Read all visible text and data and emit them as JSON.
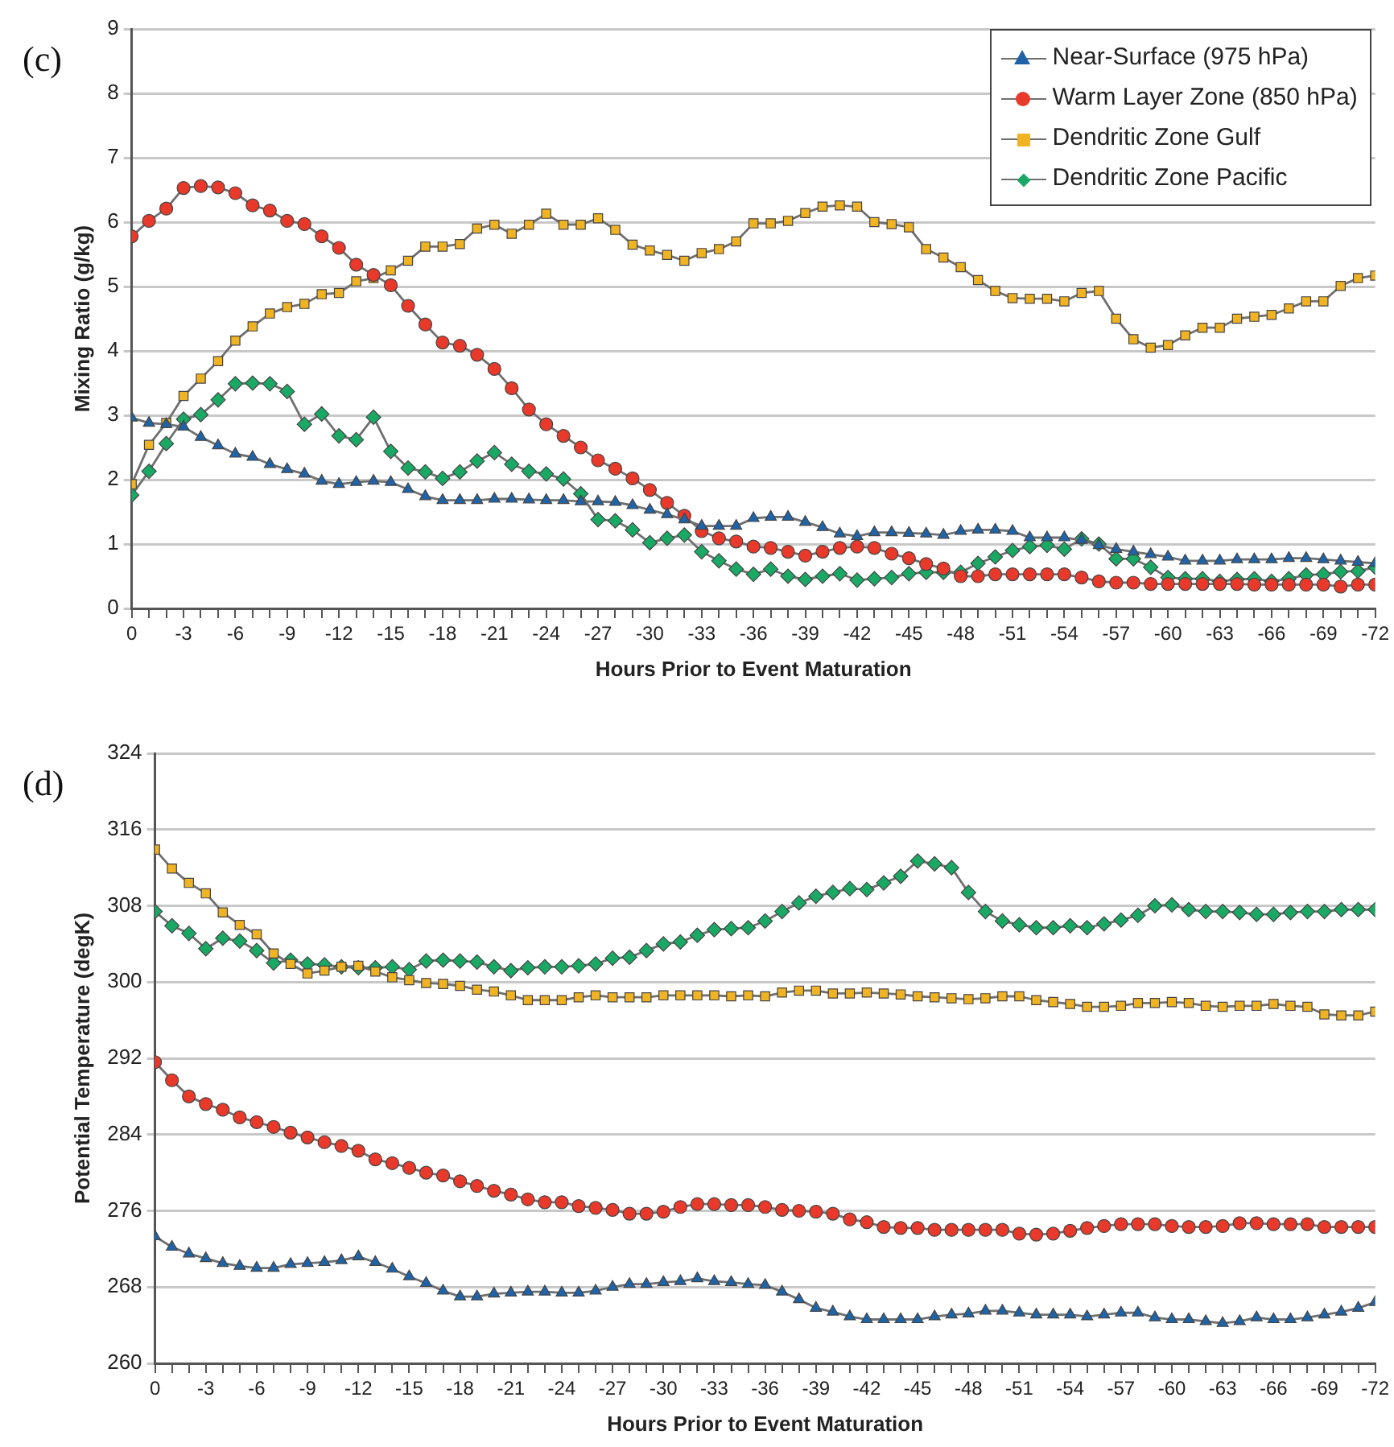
{
  "chart_data": [
    {
      "type": "line",
      "title": "(c)",
      "xlabel": "Hours Prior to Event Maturation",
      "ylabel": "Mixing Ratio (g/kg)",
      "x": [
        0,
        -1,
        -2,
        -3,
        -4,
        -5,
        -6,
        -7,
        -8,
        -9,
        -10,
        -11,
        -12,
        -13,
        -14,
        -15,
        -16,
        -17,
        -18,
        -19,
        -20,
        -21,
        -22,
        -23,
        -24,
        -25,
        -26,
        -27,
        -28,
        -29,
        -30,
        -31,
        -32,
        -33,
        -34,
        -35,
        -36,
        -37,
        -38,
        -39,
        -40,
        -41,
        -42,
        -43,
        -44,
        -45,
        -46,
        -47,
        -48,
        -49,
        -50,
        -51,
        -52,
        -53,
        -54,
        -55,
        -56,
        -57,
        -58,
        -59,
        -60,
        -61,
        -62,
        -63,
        -64,
        -65,
        -66,
        -67,
        -68,
        -69,
        -70,
        -71,
        -72
      ],
      "xlim": [
        0,
        -72
      ],
      "xticks": [
        0,
        {
          "value": -1,
          "label": null
        },
        {
          "value": -2,
          "label": null
        },
        -3,
        {
          "value": -4,
          "label": null
        },
        {
          "value": -5,
          "label": null
        },
        -6,
        {
          "value": -7,
          "label": null
        },
        {
          "value": -8,
          "label": null
        },
        -9,
        {
          "value": -10,
          "label": null
        },
        {
          "value": -11,
          "label": null
        },
        -12,
        {
          "value": -13,
          "label": null
        },
        {
          "value": -14,
          "label": null
        },
        -15,
        {
          "value": -16,
          "label": null
        },
        {
          "value": -17,
          "label": null
        },
        -18,
        {
          "value": -19,
          "label": null
        },
        {
          "value": -20,
          "label": null
        },
        -21,
        {
          "value": -22,
          "label": null
        },
        {
          "value": -23,
          "label": null
        },
        -24,
        {
          "value": -25,
          "label": null
        },
        {
          "value": -26,
          "label": null
        },
        -27,
        {
          "value": -28,
          "label": null
        },
        {
          "value": -29,
          "label": null
        },
        -30,
        {
          "value": -31,
          "label": null
        },
        {
          "value": -32,
          "label": null
        },
        -33,
        {
          "value": -34,
          "label": null
        },
        {
          "value": -35,
          "label": null
        },
        -36,
        {
          "value": -37,
          "label": null
        },
        {
          "value": -38,
          "label": null
        },
        -39,
        {
          "value": -40,
          "label": null
        },
        {
          "value": -41,
          "label": null
        },
        -42,
        {
          "value": -43,
          "label": null
        },
        {
          "value": -44,
          "label": null
        },
        -45,
        {
          "value": -46,
          "label": null
        },
        {
          "value": -47,
          "label": null
        },
        -48,
        {
          "value": -49,
          "label": null
        },
        {
          "value": -50,
          "label": null
        },
        -51,
        {
          "value": -52,
          "label": null
        },
        {
          "value": -53,
          "label": null
        },
        -54,
        {
          "value": -55,
          "label": null
        },
        {
          "value": -56,
          "label": null
        },
        -57,
        {
          "value": -58,
          "label": null
        },
        {
          "value": -59,
          "label": null
        },
        -60,
        {
          "value": -61,
          "label": null
        },
        {
          "value": -62,
          "label": null
        },
        -63,
        {
          "value": -64,
          "label": null
        },
        {
          "value": -65,
          "label": null
        },
        -66,
        {
          "value": -67,
          "label": null
        },
        {
          "value": -68,
          "label": null
        },
        -69,
        {
          "value": -70,
          "label": null
        },
        {
          "value": -71,
          "label": null
        },
        -72
      ],
      "ylim": [
        0,
        9
      ],
      "yticks": [
        0,
        1,
        2,
        3,
        4,
        5,
        6,
        7,
        8,
        9
      ],
      "grid": "y",
      "legend": "top right",
      "line_style": "solid",
      "series": [
        {
          "name": "Near-Surface (975 hPa)",
          "color": "#1f64a8",
          "marker": "triangle",
          "values": [
            2.96,
            2.88,
            2.86,
            2.82,
            2.66,
            2.53,
            2.4,
            2.35,
            2.24,
            2.16,
            2.09,
            1.98,
            1.93,
            1.96,
            1.98,
            1.96,
            1.85,
            1.74,
            1.68,
            1.68,
            1.68,
            1.7,
            1.7,
            1.69,
            1.68,
            1.68,
            1.66,
            1.66,
            1.65,
            1.6,
            1.53,
            1.46,
            1.38,
            1.28,
            1.28,
            1.28,
            1.4,
            1.42,
            1.42,
            1.34,
            1.26,
            1.16,
            1.12,
            1.18,
            1.18,
            1.17,
            1.16,
            1.14,
            1.2,
            1.22,
            1.22,
            1.2,
            1.1,
            1.1,
            1.1,
            1.06,
            0.98,
            0.92,
            0.88,
            0.84,
            0.8,
            0.74,
            0.74,
            0.74,
            0.76,
            0.76,
            0.76,
            0.78,
            0.78,
            0.76,
            0.74,
            0.72,
            0.7
          ]
        },
        {
          "name": "Warm Layer Zone (850 hPa)",
          "color": "#e8392a",
          "marker": "circle",
          "values": [
            5.78,
            6.02,
            6.21,
            6.53,
            6.56,
            6.54,
            6.45,
            6.26,
            6.18,
            6.02,
            5.97,
            5.78,
            5.6,
            5.34,
            5.18,
            5.02,
            4.7,
            4.41,
            4.13,
            4.08,
            3.94,
            3.72,
            3.42,
            3.09,
            2.86,
            2.68,
            2.5,
            2.3,
            2.17,
            2.02,
            1.84,
            1.64,
            1.44,
            1.2,
            1.09,
            1.04,
            0.96,
            0.94,
            0.88,
            0.82,
            0.88,
            0.94,
            0.96,
            0.94,
            0.85,
            0.78,
            0.69,
            0.62,
            0.5,
            0.5,
            0.53,
            0.53,
            0.53,
            0.53,
            0.53,
            0.48,
            0.42,
            0.4,
            0.4,
            0.38,
            0.38,
            0.38,
            0.38,
            0.38,
            0.38,
            0.37,
            0.37,
            0.37,
            0.37,
            0.37,
            0.34,
            0.37,
            0.37
          ]
        },
        {
          "name": "Dendritic Zone Gulf",
          "color": "#f0b323",
          "marker": "square",
          "values": [
            1.93,
            2.54,
            2.88,
            3.3,
            3.57,
            3.84,
            4.16,
            4.38,
            4.58,
            4.68,
            4.73,
            4.88,
            4.9,
            5.08,
            5.13,
            5.25,
            5.4,
            5.62,
            5.62,
            5.66,
            5.9,
            5.96,
            5.82,
            5.96,
            6.13,
            5.96,
            5.96,
            6.06,
            5.88,
            5.65,
            5.56,
            5.49,
            5.4,
            5.52,
            5.58,
            5.7,
            5.98,
            5.98,
            6.02,
            6.14,
            6.24,
            6.26,
            6.24,
            6.0,
            5.97,
            5.92,
            5.58,
            5.45,
            5.3,
            5.1,
            4.93,
            4.82,
            4.81,
            4.81,
            4.77,
            4.9,
            4.93,
            4.5,
            4.18,
            4.05,
            4.09,
            4.24,
            4.36,
            4.36,
            4.5,
            4.53,
            4.56,
            4.66,
            4.77,
            4.77,
            5.01,
            5.13,
            5.17
          ]
        },
        {
          "name": "Dendritic Zone Pacific",
          "color": "#1aa865",
          "marker": "diamond",
          "values": [
            1.76,
            2.13,
            2.56,
            2.94,
            3.01,
            3.24,
            3.49,
            3.5,
            3.49,
            3.37,
            2.86,
            3.02,
            2.68,
            2.62,
            2.97,
            2.44,
            2.18,
            2.12,
            2.02,
            2.12,
            2.29,
            2.42,
            2.24,
            2.13,
            2.09,
            2.01,
            1.78,
            1.38,
            1.36,
            1.22,
            1.02,
            1.09,
            1.14,
            0.88,
            0.74,
            0.61,
            0.53,
            0.61,
            0.5,
            0.45,
            0.5,
            0.54,
            0.44,
            0.46,
            0.48,
            0.54,
            0.56,
            0.56,
            0.56,
            0.7,
            0.8,
            0.9,
            0.96,
            0.98,
            0.92,
            1.08,
            1.0,
            0.77,
            0.77,
            0.64,
            0.48,
            0.46,
            0.46,
            0.42,
            0.45,
            0.46,
            0.42,
            0.46,
            0.52,
            0.53,
            0.57,
            0.58,
            0.64
          ]
        }
      ]
    },
    {
      "type": "line",
      "title": "(d)",
      "xlabel": "Hours Prior to Event Maturation",
      "ylabel": "Potential Temperature (degK)",
      "x": [
        0,
        -1,
        -2,
        -3,
        -4,
        -5,
        -6,
        -7,
        -8,
        -9,
        -10,
        -11,
        -12,
        -13,
        -14,
        -15,
        -16,
        -17,
        -18,
        -19,
        -20,
        -21,
        -22,
        -23,
        -24,
        -25,
        -26,
        -27,
        -28,
        -29,
        -30,
        -31,
        -32,
        -33,
        -34,
        -35,
        -36,
        -37,
        -38,
        -39,
        -40,
        -41,
        -42,
        -43,
        -44,
        -45,
        -46,
        -47,
        -48,
        -49,
        -50,
        -51,
        -52,
        -53,
        -54,
        -55,
        -56,
        -57,
        -58,
        -59,
        -60,
        -61,
        -62,
        -63,
        -64,
        -65,
        -66,
        -67,
        -68,
        -69,
        -70,
        -71,
        -72
      ],
      "xlim": [
        0,
        -72
      ],
      "xticks": [
        0,
        {
          "value": -1,
          "label": null
        },
        {
          "value": -2,
          "label": null
        },
        -3,
        {
          "value": -4,
          "label": null
        },
        {
          "value": -5,
          "label": null
        },
        -6,
        {
          "value": -7,
          "label": null
        },
        {
          "value": -8,
          "label": null
        },
        -9,
        {
          "value": -10,
          "label": null
        },
        {
          "value": -11,
          "label": null
        },
        -12,
        {
          "value": -13,
          "label": null
        },
        {
          "value": -14,
          "label": null
        },
        -15,
        {
          "value": -16,
          "label": null
        },
        {
          "value": -17,
          "label": null
        },
        -18,
        {
          "value": -19,
          "label": null
        },
        {
          "value": -20,
          "label": null
        },
        -21,
        {
          "value": -22,
          "label": null
        },
        {
          "value": -23,
          "label": null
        },
        -24,
        {
          "value": -25,
          "label": null
        },
        {
          "value": -26,
          "label": null
        },
        -27,
        {
          "value": -28,
          "label": null
        },
        {
          "value": -29,
          "label": null
        },
        -30,
        {
          "value": -31,
          "label": null
        },
        {
          "value": -32,
          "label": null
        },
        -33,
        {
          "value": -34,
          "label": null
        },
        {
          "value": -35,
          "label": null
        },
        -36,
        {
          "value": -37,
          "label": null
        },
        {
          "value": -38,
          "label": null
        },
        -39,
        {
          "value": -40,
          "label": null
        },
        {
          "value": -41,
          "label": null
        },
        -42,
        {
          "value": -43,
          "label": null
        },
        {
          "value": -44,
          "label": null
        },
        -45,
        {
          "value": -46,
          "label": null
        },
        {
          "value": -47,
          "label": null
        },
        -48,
        {
          "value": -49,
          "label": null
        },
        {
          "value": -50,
          "label": null
        },
        -51,
        {
          "value": -52,
          "label": null
        },
        {
          "value": -53,
          "label": null
        },
        -54,
        {
          "value": -55,
          "label": null
        },
        {
          "value": -56,
          "label": null
        },
        -57,
        {
          "value": -58,
          "label": null
        },
        {
          "value": -59,
          "label": null
        },
        -60,
        {
          "value": -61,
          "label": null
        },
        {
          "value": -62,
          "label": null
        },
        -63,
        {
          "value": -64,
          "label": null
        },
        {
          "value": -65,
          "label": null
        },
        -66,
        {
          "value": -67,
          "label": null
        },
        {
          "value": -68,
          "label": null
        },
        -69,
        {
          "value": -70,
          "label": null
        },
        {
          "value": -71,
          "label": null
        },
        -72
      ],
      "ylim": [
        260,
        324
      ],
      "yticks": [
        260,
        268,
        276,
        284,
        292,
        300,
        308,
        316,
        324
      ],
      "grid": "y",
      "line_style": "solid",
      "series": [
        {
          "color": "#1f64a8",
          "marker": "triangle",
          "values": [
            273.3,
            272.2,
            271.5,
            271.0,
            270.5,
            270.2,
            270.0,
            270.0,
            270.4,
            270.5,
            270.6,
            270.8,
            271.2,
            270.6,
            269.9,
            269.1,
            268.4,
            267.6,
            267.0,
            267.0,
            267.3,
            267.4,
            267.5,
            267.5,
            267.4,
            267.4,
            267.6,
            268.0,
            268.3,
            268.3,
            268.5,
            268.6,
            268.9,
            268.6,
            268.5,
            268.3,
            268.2,
            267.5,
            266.7,
            265.8,
            265.4,
            264.9,
            264.6,
            264.6,
            264.6,
            264.6,
            264.9,
            265.1,
            265.2,
            265.5,
            265.5,
            265.3,
            265.1,
            265.1,
            265.1,
            264.9,
            265.1,
            265.3,
            265.3,
            264.8,
            264.6,
            264.6,
            264.4,
            264.2,
            264.4,
            264.8,
            264.6,
            264.6,
            264.8,
            265.1,
            265.4,
            265.8,
            266.4
          ]
        },
        {
          "color": "#e8392a",
          "marker": "circle",
          "values": [
            291.6,
            289.7,
            288.0,
            287.2,
            286.6,
            285.8,
            285.3,
            284.8,
            284.2,
            283.7,
            283.2,
            282.8,
            282.3,
            281.4,
            281.0,
            280.5,
            280.0,
            279.7,
            279.1,
            278.6,
            278.1,
            277.7,
            277.2,
            276.9,
            276.9,
            276.5,
            276.3,
            276.1,
            275.7,
            275.7,
            275.9,
            276.4,
            276.7,
            276.7,
            276.6,
            276.6,
            276.4,
            276.1,
            276.0,
            275.9,
            275.7,
            275.1,
            274.8,
            274.3,
            274.2,
            274.2,
            274.0,
            274.0,
            274.0,
            274.0,
            274.0,
            273.6,
            273.5,
            273.6,
            273.9,
            274.2,
            274.4,
            274.6,
            274.6,
            274.6,
            274.4,
            274.3,
            274.3,
            274.4,
            274.7,
            274.7,
            274.6,
            274.6,
            274.6,
            274.3,
            274.3,
            274.3,
            274.3
          ]
        },
        {
          "color": "#f0b323",
          "marker": "square",
          "values": [
            313.9,
            311.9,
            310.4,
            309.3,
            307.3,
            306.0,
            305.0,
            303.0,
            301.9,
            300.9,
            301.2,
            301.6,
            301.7,
            301.1,
            300.5,
            300.2,
            299.9,
            299.8,
            299.6,
            299.2,
            299.0,
            298.6,
            298.1,
            298.1,
            298.1,
            298.4,
            298.6,
            298.4,
            298.4,
            298.4,
            298.6,
            298.6,
            298.6,
            298.6,
            298.5,
            298.6,
            298.5,
            298.9,
            299.1,
            299.1,
            298.8,
            298.8,
            298.9,
            298.8,
            298.7,
            298.5,
            298.4,
            298.3,
            298.2,
            298.3,
            298.5,
            298.5,
            298.1,
            297.9,
            297.7,
            297.4,
            297.4,
            297.5,
            297.8,
            297.8,
            297.9,
            297.8,
            297.5,
            297.4,
            297.5,
            297.5,
            297.7,
            297.5,
            297.4,
            296.6,
            296.5,
            296.5,
            296.9
          ]
        },
        {
          "color": "#1aa865",
          "marker": "diamond",
          "values": [
            307.4,
            305.9,
            305.1,
            303.5,
            304.6,
            304.3,
            303.3,
            302.0,
            302.3,
            301.9,
            301.8,
            301.6,
            301.5,
            301.5,
            301.6,
            301.3,
            302.2,
            302.3,
            302.2,
            302.1,
            301.6,
            301.2,
            301.5,
            301.6,
            301.6,
            301.7,
            301.9,
            302.5,
            302.6,
            303.3,
            304.0,
            304.2,
            304.9,
            305.5,
            305.6,
            305.7,
            306.4,
            307.4,
            308.3,
            309.0,
            309.4,
            309.8,
            309.7,
            310.4,
            311.1,
            312.7,
            312.4,
            312.0,
            309.4,
            307.4,
            306.4,
            306.0,
            305.7,
            305.7,
            305.9,
            305.7,
            306.1,
            306.5,
            307.0,
            308.0,
            308.1,
            307.6,
            307.4,
            307.4,
            307.3,
            307.1,
            307.1,
            307.3,
            307.4,
            307.4,
            307.6,
            307.6,
            307.6
          ]
        }
      ]
    }
  ]
}
